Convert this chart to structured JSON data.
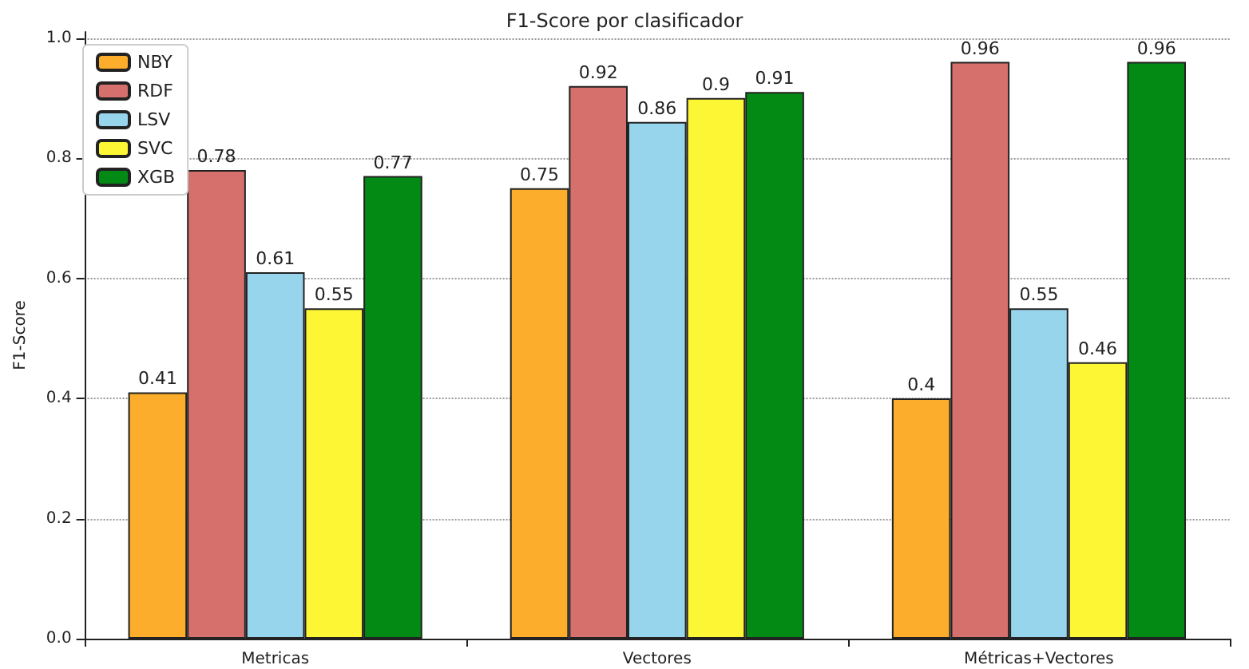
{
  "chart_data": {
    "type": "bar",
    "title": "F1-Score por clasificador",
    "ylabel": "F1-Score",
    "categories": [
      "Metricas",
      "Vectores",
      "Métricas+Vectores"
    ],
    "series": [
      {
        "name": "NBY",
        "color": "#fbad2b",
        "values": [
          0.41,
          0.75,
          0.4
        ]
      },
      {
        "name": "RDF",
        "color": "#d6706d",
        "values": [
          0.78,
          0.92,
          0.96
        ]
      },
      {
        "name": "LSV",
        "color": "#97d5ed",
        "values": [
          0.61,
          0.86,
          0.55
        ]
      },
      {
        "name": "SVC",
        "color": "#fdf634",
        "values": [
          0.55,
          0.9,
          0.46
        ]
      },
      {
        "name": "XGB",
        "color": "#038a14",
        "values": [
          0.77,
          0.91,
          0.96
        ]
      }
    ],
    "ylim": [
      0,
      1.01
    ],
    "yticks": [
      {
        "value": 0,
        "label": "0.0"
      },
      {
        "value": 0.2,
        "label": "0.2"
      },
      {
        "value": 0.4,
        "label": "0.4"
      },
      {
        "value": 0.6,
        "label": "0.6"
      },
      {
        "value": 0.8,
        "label": "0.8"
      },
      {
        "value": 1,
        "label": "1.0"
      }
    ],
    "grid": "y",
    "legend": "top left",
    "data_labels": true
  }
}
